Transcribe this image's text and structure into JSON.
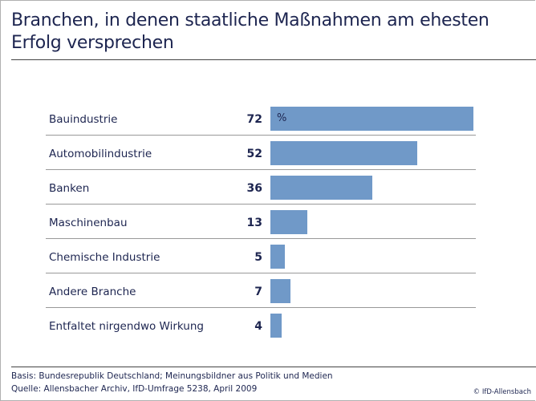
{
  "chart_data": {
    "type": "bar",
    "orientation": "horizontal",
    "title": "Branchen, in denen staatliche Maßnahmen am ehesten Erfolg versprechen",
    "categories": [
      "Bauindustrie",
      "Automobilindustrie",
      "Banken",
      "Maschinenbau",
      "Chemische Industrie",
      "Andere Branche",
      "Entfaltet nirgendwo Wirkung"
    ],
    "values": [
      72,
      52,
      36,
      13,
      5,
      7,
      4
    ],
    "unit": "%",
    "bar_color": "#7099c8",
    "xlim": [
      0,
      100
    ]
  },
  "title_line1": "Branchen, in denen staatliche Maßnahmen am ehesten",
  "title_line2": "Erfolg versprechen",
  "footer": {
    "basis": "Basis: Bundesrepublik Deutschland; Meinungsbildner aus Politik und Medien",
    "source": "Quelle: Allensbacher Archiv, IfD-Umfrage 5238, April 2009",
    "copyright": "© IfD-Allensbach"
  }
}
